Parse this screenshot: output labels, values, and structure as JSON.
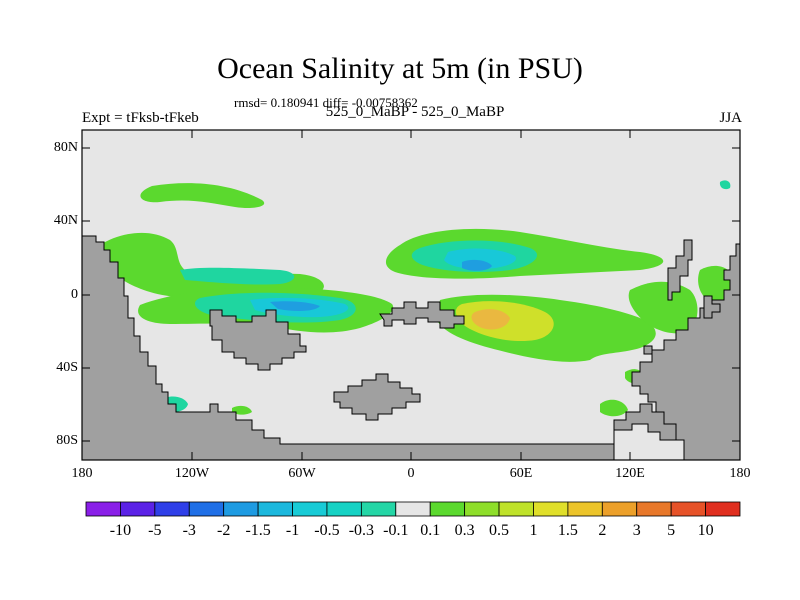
{
  "header": {
    "title": "Ocean Salinity at 5m (in PSU)",
    "stats": "rmsd= 0.180941 diff= -0.00758362",
    "experiment": "Expt = tFksb-tFkeb",
    "comparison": "525_0_MaBP - 525_0_MaBP",
    "season": "JJA"
  },
  "axes": {
    "y_ticks": [
      "80N",
      "40N",
      "0",
      "40S",
      "80S"
    ],
    "x_ticks": [
      "180",
      "120W",
      "60W",
      "0",
      "60E",
      "120E",
      "180"
    ]
  },
  "colorbar": {
    "labels": [
      "-10",
      "-5",
      "-3",
      "-2",
      "-1.5",
      "-1",
      "-0.5",
      "-0.3",
      "-0.1",
      "0.1",
      "0.3",
      "0.5",
      "1",
      "1.5",
      "2",
      "3",
      "5",
      "10"
    ],
    "colors": [
      "#8a1fe8",
      "#5b22e6",
      "#2f3fe8",
      "#1f6fe6",
      "#1e9be2",
      "#1cb8dd",
      "#18cbd6",
      "#16d2c4",
      "#24d6a6",
      "#e6e6e6",
      "#5bd92e",
      "#8ede2a",
      "#bfe22a",
      "#e0df2a",
      "#ecc42a",
      "#eca02a",
      "#e8782a",
      "#e65228",
      "#e02f1f"
    ]
  },
  "map_colors": {
    "ocean": "#e6e6e6",
    "land": "#a0a0a0",
    "green": "#5bd92e",
    "teal": "#1fd6a0",
    "cyan": "#18c8d8",
    "blue": "#1f9ee0",
    "yellow": "#cfe02a",
    "orange": "#eab840"
  }
}
